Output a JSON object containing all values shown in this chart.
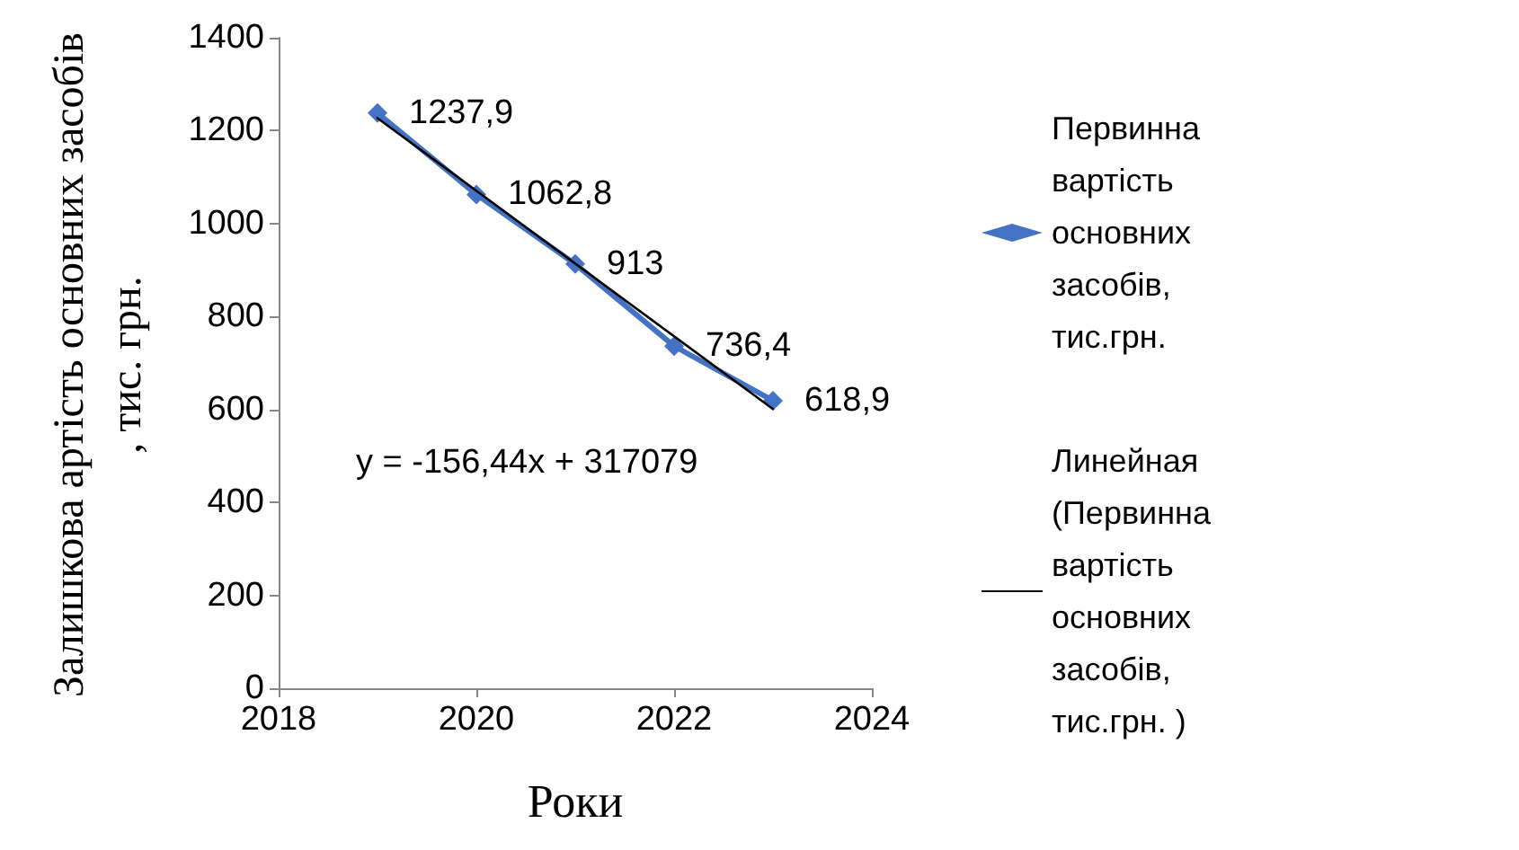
{
  "chart_data": {
    "type": "line",
    "xlabel": "Роки",
    "ylabel": "Залишкова  артість основних засобів , тис. грн.",
    "x": [
      2019,
      2020,
      2021,
      2022,
      2023
    ],
    "series": [
      {
        "name": "Первинна вартість основних засобів, тис.грн.",
        "color": "#4472c4",
        "values": [
          1237.9,
          1062.8,
          913,
          736.4,
          618.9
        ],
        "value_labels": [
          "1237,9",
          "1062,8",
          "913",
          "736,4",
          "618,9"
        ],
        "marker": "diamond"
      },
      {
        "name": "Линейная (Первинна вартість основних засобів, тис.грн. )",
        "color": "#000000",
        "x": [
          2019,
          2023
        ],
        "values": [
          1227,
          601
        ],
        "marker": "none"
      }
    ],
    "annotations": [
      "y = -156,44x + 317079"
    ],
    "xlim": [
      2018,
      2024
    ],
    "xticks": [
      2018,
      2020,
      2022,
      2024
    ],
    "ylim": [
      0,
      1400
    ],
    "yticks": [
      0,
      200,
      400,
      600,
      800,
      1000,
      1200,
      1400
    ],
    "grid": false,
    "legend": "right"
  }
}
